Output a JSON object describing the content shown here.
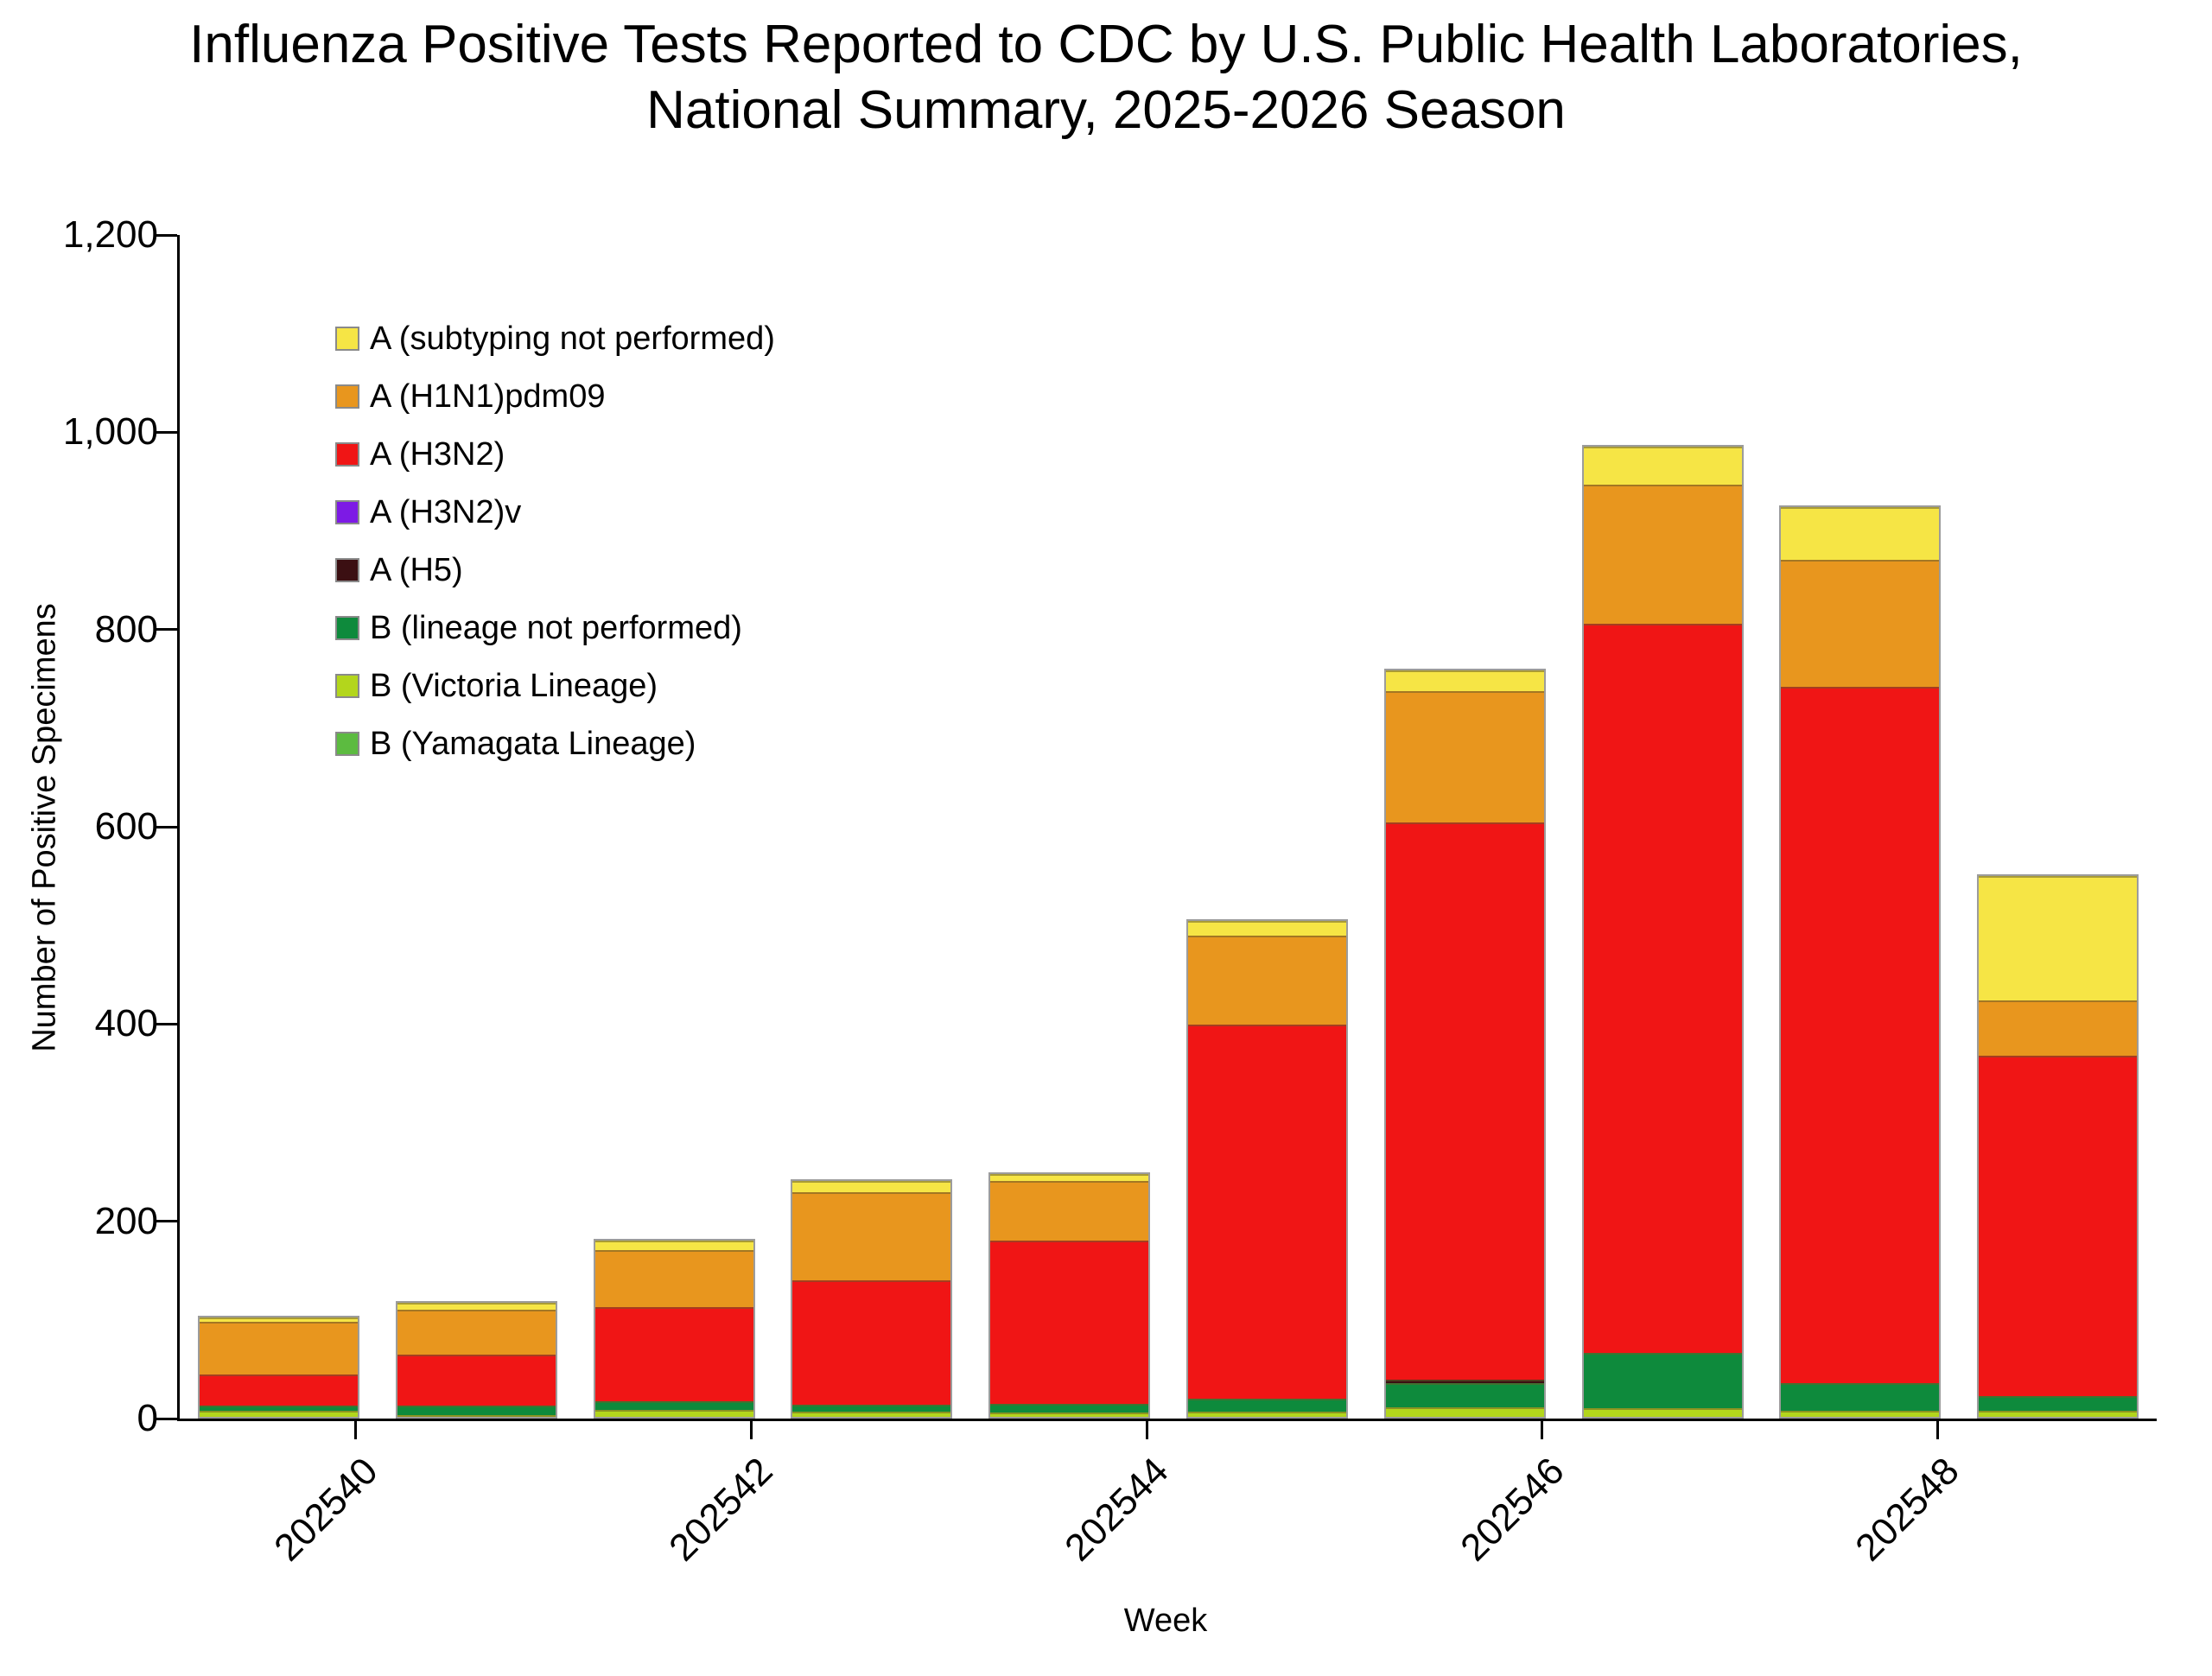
{
  "title": {
    "line1": "Influenza Positive Tests Reported to CDC by U.S. Public Health Laboratories,",
    "line2": "National Summary, 2025-2026 Season"
  },
  "axes": {
    "y_label": "Number of Positive Specimens",
    "x_label": "Week",
    "y_tick_labels": [
      "0",
      "200",
      "400",
      "600",
      "800",
      "1,000",
      "1,200"
    ],
    "y_tick_values": [
      0,
      200,
      400,
      600,
      800,
      1000,
      1200
    ],
    "x_tick_labels": [
      "202540",
      "202542",
      "202544",
      "202546",
      "202548"
    ]
  },
  "legend": {
    "items": [
      {
        "label": "A (subtyping not performed)",
        "color": "#F6E545"
      },
      {
        "label": "A (H1N1)pdm09",
        "color": "#E8961E"
      },
      {
        "label": "A (H3N2)",
        "color": "#F01515"
      },
      {
        "label": "A (H3N2)v",
        "color": "#7D1AE5"
      },
      {
        "label": "A (H5)",
        "color": "#3B0F12"
      },
      {
        "label": "B (lineage not performed)",
        "color": "#0E8A3C"
      },
      {
        "label": "B (Victoria Lineage)",
        "color": "#B3D61C"
      },
      {
        "label": "B (Yamagata Lineage)",
        "color": "#5CBB40"
      }
    ]
  },
  "chart_data": {
    "type": "bar",
    "stacked": true,
    "title": "Influenza Positive Tests Reported to CDC by U.S. Public Health Laboratories, National Summary, 2025-2026 Season",
    "xlabel": "Week",
    "ylabel": "Number of Positive Specimens",
    "ylim": [
      0,
      1200
    ],
    "grid": false,
    "legend_position": "upper-left-inside",
    "categories": [
      "202540",
      "202541",
      "202542",
      "202543",
      "202544",
      "202545",
      "202546",
      "202547",
      "202548",
      "202549"
    ],
    "x_ticks_shown": [
      "202540",
      "202542",
      "202544",
      "202546",
      "202548"
    ],
    "stack_order_bottom_to_top": [
      "B (Yamagata Lineage)",
      "B (Victoria Lineage)",
      "B (lineage not performed)",
      "A (H5)",
      "A (H3N2)v",
      "A (H3N2)",
      "A (H1N1)pdm09",
      "A (subtyping not performed)"
    ],
    "series": [
      {
        "name": "A (subtyping not performed)",
        "color": "#F6E545",
        "values": [
          5,
          7,
          10,
          11,
          7,
          15,
          21,
          39,
          53,
          126
        ]
      },
      {
        "name": "A (H1N1)pdm09",
        "color": "#E8961E",
        "values": [
          53,
          46,
          58,
          90,
          60,
          90,
          133,
          141,
          129,
          56
        ]
      },
      {
        "name": "A (H3N2)",
        "color": "#F01515",
        "values": [
          32,
          52,
          95,
          126,
          166,
          380,
          565,
          739,
          706,
          345
        ]
      },
      {
        "name": "A (H3N2)v",
        "color": "#7D1AE5",
        "values": [
          0,
          0,
          0,
          0,
          0,
          0,
          0,
          0,
          0,
          0
        ]
      },
      {
        "name": "A (H5)",
        "color": "#3B0F12",
        "values": [
          0,
          0,
          0,
          0,
          0,
          0,
          4,
          0,
          0,
          0
        ]
      },
      {
        "name": "B (lineage not performed)",
        "color": "#0E8A3C",
        "values": [
          5,
          10,
          9,
          7,
          9,
          13,
          24,
          56,
          28,
          15
        ]
      },
      {
        "name": "B (Victoria Lineage)",
        "color": "#B3D61C",
        "values": [
          6,
          1,
          7,
          5,
          4,
          5,
          10,
          9,
          6,
          6
        ]
      },
      {
        "name": "B (Yamagata Lineage)",
        "color": "#5CBB40",
        "values": [
          0,
          0,
          0,
          0,
          0,
          0,
          0,
          0,
          0,
          0
        ]
      }
    ],
    "totals": [
      101,
      116,
      179,
      239,
      246,
      503,
      757,
      984,
      922,
      548
    ]
  }
}
